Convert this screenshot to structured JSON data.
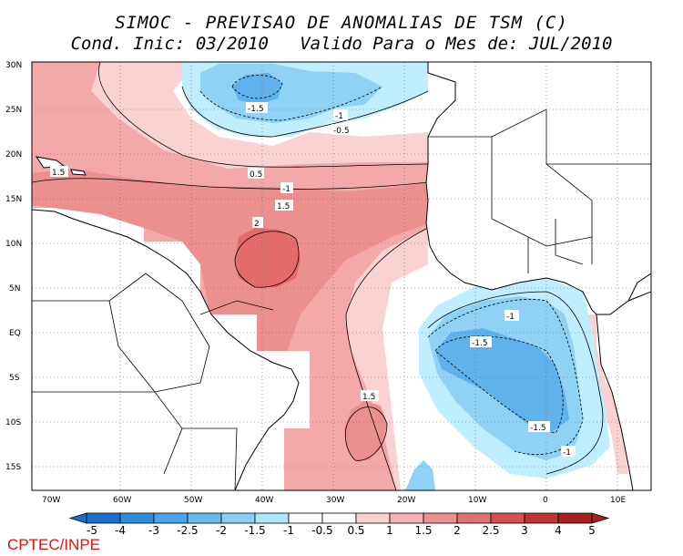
{
  "title_line1": "SIMOC - PREVISAO DE ANOMALIAS DE TSM (C)",
  "title_line2": "Cond. Inic: 03/2010   Valido Para o Mes de: JUL/2010",
  "credit": "CPTEC/INPE",
  "lat_labels": [
    "30N",
    "25N",
    "20N",
    "15N",
    "10N",
    "5N",
    "EQ",
    "5S",
    "10S",
    "15S"
  ],
  "lon_labels": [
    "70W",
    "60W",
    "50W",
    "40W",
    "30W",
    "20W",
    "10W",
    "0",
    "10E"
  ],
  "contour_labels": [
    "-1.5",
    "-1",
    "-0.5",
    "0.5",
    "-1",
    "1.5",
    "1.5",
    "2",
    "-1",
    "-1.5",
    "-1.5",
    "-1",
    "1.5"
  ],
  "colorbar": {
    "labels": [
      "-5",
      "-4",
      "-3",
      "-2.5",
      "-2",
      "-1.5",
      "-1",
      "-0.5",
      "0.5",
      "1",
      "1.5",
      "2",
      "2.5",
      "3",
      "4",
      "5"
    ],
    "colors": [
      "#1a6fd0",
      "#2e8fe0",
      "#4aa6ec",
      "#67bcf2",
      "#89cff7",
      "#b0e4fb",
      "#ffffff",
      "#ffffff",
      "#fbd0d0",
      "#f6b0b0",
      "#ec9090",
      "#e07070",
      "#d65050",
      "#c23434",
      "#a91f1f"
    ]
  },
  "map_colors": {
    "pos_0_5": "#fbd2d2",
    "pos_1": "#f4a9a9",
    "pos_1_5": "#ec8f8f",
    "pos_2": "#e36b6b",
    "neg_0_5": "#bfeeff",
    "neg_1": "#8fd2f6",
    "neg_1_5": "#5fb2ec"
  }
}
